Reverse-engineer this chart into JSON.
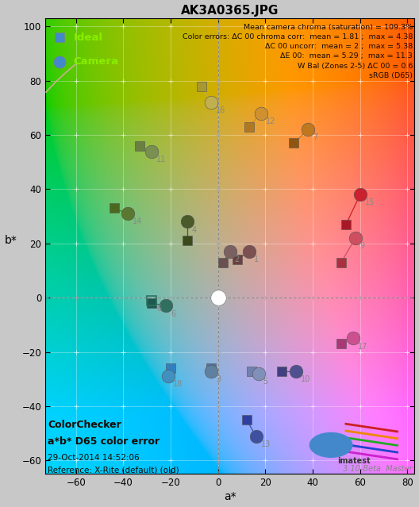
{
  "title": "AK3A0365.JPG",
  "xlabel": "a*",
  "ylabel": "b*",
  "xlim": [
    -73,
    83
  ],
  "ylim": [
    -65,
    103
  ],
  "xticks": [
    -60,
    -40,
    -20,
    0,
    20,
    40,
    60,
    80
  ],
  "yticks": [
    -60,
    -40,
    -20,
    0,
    20,
    40,
    60,
    80,
    100
  ],
  "bg_color": "#c8c8c8",
  "stats_text": "Mean camera chroma (saturation) = 109.3%\nColor errors: ΔC 00 chroma corr:  mean = 1.81 ;  max = 4.38\nΔC 00 uncorr:  mean = 2 ;  max = 5.38\nΔE 00:  mean = 5.29 ;  max = 11.3\nW Bal (Zones 2-5) ΔC 00 = 0.6\nsRGB (D65)",
  "bottom_left_line1": "ColorChecker",
  "bottom_left_line2": "a*b* D65 color error",
  "bottom_left_line3": "29-Oct-2014 14:52:06",
  "bottom_left_line4": "Reference: X-Rite (default) (old)",
  "bottom_right_text": "3.10-Beta  Master",
  "patches": [
    {
      "id": 1,
      "sq": [
        8,
        14
      ],
      "ci": [
        13,
        17
      ],
      "color": "#7a5050",
      "sq_color": "#6a4040"
    },
    {
      "id": 2,
      "sq": [
        2,
        13
      ],
      "ci": [
        5,
        17
      ],
      "color": "#7a6060",
      "sq_color": "#6a5050"
    },
    {
      "id": 3,
      "sq": [
        -3,
        -26
      ],
      "ci": [
        -3,
        -27
      ],
      "color": "#6080a0",
      "sq_color": "#5070a0"
    },
    {
      "id": 4,
      "sq": [
        -13,
        21
      ],
      "ci": [
        -13,
        28
      ],
      "color": "#4a5a2a",
      "sq_color": "#3a4a1a"
    },
    {
      "id": 5,
      "sq": [
        14,
        -27
      ],
      "ci": [
        17,
        -28
      ],
      "color": "#8090b8",
      "sq_color": "#7080b0"
    },
    {
      "id": 6,
      "sq": [
        -28,
        -2
      ],
      "ci": [
        -22,
        -3
      ],
      "color": "#307060",
      "sq_color": "#1a5a50"
    },
    {
      "id": 7,
      "sq": [
        32,
        57
      ],
      "ci": [
        38,
        62
      ],
      "color": "#c07820",
      "sq_color": "#905510"
    },
    {
      "id": 9,
      "sq": [
        52,
        13
      ],
      "ci": [
        58,
        22
      ],
      "color": "#cc5060",
      "sq_color": "#aa3040"
    },
    {
      "id": 10,
      "sq": [
        27,
        -27
      ],
      "ci": [
        33,
        -27
      ],
      "color": "#505090",
      "sq_color": "#404080"
    },
    {
      "id": 11,
      "sq": [
        -33,
        56
      ],
      "ci": [
        -28,
        54
      ],
      "color": "#7a9050",
      "sq_color": "#6a8040"
    },
    {
      "id": 12,
      "sq": [
        13,
        63
      ],
      "ci": [
        18,
        68
      ],
      "color": "#d09030",
      "sq_color": "#b07820"
    },
    {
      "id": 13,
      "sq": [
        12,
        -45
      ],
      "ci": [
        16,
        -51
      ],
      "color": "#4050a0",
      "sq_color": "#3040a0"
    },
    {
      "id": 14,
      "sq": [
        -44,
        33
      ],
      "ci": [
        -38,
        31
      ],
      "color": "#5a7830",
      "sq_color": "#4a6820"
    },
    {
      "id": 15,
      "sq": [
        54,
        27
      ],
      "ci": [
        60,
        38
      ],
      "color": "#cc2030",
      "sq_color": "#aa1828"
    },
    {
      "id": 16,
      "sq": [
        -7,
        78
      ],
      "ci": [
        -3,
        72
      ],
      "color": "#c0b050",
      "sq_color": "#a89830"
    },
    {
      "id": 17,
      "sq": [
        52,
        -17
      ],
      "ci": [
        57,
        -15
      ],
      "color": "#cc5090",
      "sq_color": "#aa3878"
    },
    {
      "id": 18,
      "sq": [
        -20,
        -26
      ],
      "ci": [
        -21,
        -29
      ],
      "color": "#4090c0",
      "sq_color": "#3080c0"
    }
  ],
  "neutral_sq": [
    -28,
    -1
  ],
  "neutral_ci": [
    0,
    0
  ],
  "legend_ideal_color": "#4488cc",
  "legend_camera_color": "#4488cc",
  "legend_text_color": "#88ee00",
  "gamut_color": "#c8b090"
}
